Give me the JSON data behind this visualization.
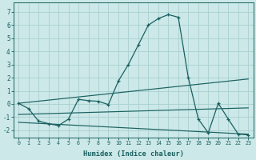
{
  "xlabel": "Humidex (Indice chaleur)",
  "bg_color": "#cce8e8",
  "grid_color": "#aad0d0",
  "line_color": "#1a6060",
  "xlim": [
    -0.5,
    23.5
  ],
  "ylim": [
    -2.55,
    7.7
  ],
  "xticks": [
    0,
    1,
    2,
    3,
    4,
    5,
    6,
    7,
    8,
    9,
    10,
    11,
    12,
    13,
    14,
    15,
    16,
    17,
    18,
    19,
    20,
    21,
    22,
    23
  ],
  "yticks": [
    -2,
    -1,
    0,
    1,
    2,
    3,
    4,
    5,
    6,
    7
  ],
  "trend1_x": [
    0,
    23
  ],
  "trend1_y": [
    0.05,
    1.9
  ],
  "trend2_x": [
    0,
    23
  ],
  "trend2_y": [
    -0.8,
    -0.3
  ],
  "trend3_x": [
    0,
    23
  ],
  "trend3_y": [
    -1.4,
    -2.3
  ],
  "main_x": [
    0,
    1,
    2,
    3,
    4,
    5,
    6,
    7,
    8,
    9,
    10,
    11,
    12,
    13,
    14,
    15,
    16,
    17,
    18,
    19,
    20,
    21,
    22,
    23
  ],
  "main_y": [
    0.05,
    -0.35,
    -1.3,
    -1.5,
    -1.65,
    -1.15,
    0.35,
    0.25,
    0.2,
    -0.05,
    1.75,
    3.0,
    4.5,
    6.0,
    6.5,
    6.8,
    6.6,
    2.0,
    -1.15,
    -2.2,
    0.05,
    -1.15,
    -2.3,
    -2.35
  ]
}
